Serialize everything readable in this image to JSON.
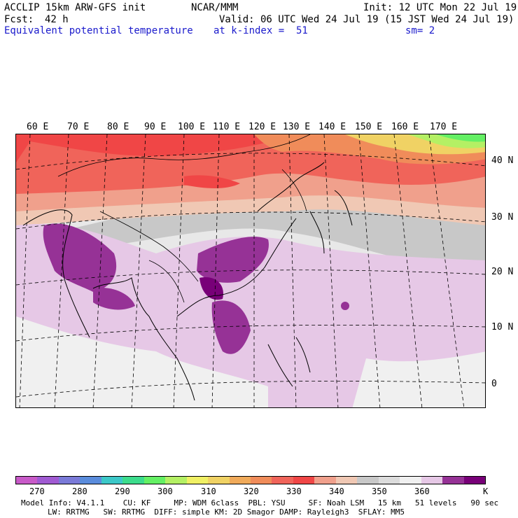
{
  "header": {
    "model": "ACCLIP 15km ARW-GFS init",
    "org": "NCAR/MMM",
    "init": "Init: 12 UTC Mon 22 Jul 19",
    "fcst_label": "Fcst:",
    "fcst_value": "42 h",
    "valid": "Valid: 06 UTC Wed 24 Jul 19 (15 JST Wed 24 Jul 19)",
    "field": "Equivalent potential temperature",
    "level": "at k-index =  51",
    "smooth": "sm= 2"
  },
  "map": {
    "lon_labels": [
      "60 E",
      "70 E",
      "80 E",
      "90 E",
      "100 E",
      "110 E",
      "120 E",
      "130 E",
      "140 E",
      "150 E",
      "160 E",
      "170 E"
    ],
    "lat_labels": [
      "40 N",
      "30 N",
      "20 N",
      "10 N",
      "0"
    ]
  },
  "colorbar": {
    "colors": [
      "#c85ac8",
      "#a05ad2",
      "#7a7ad8",
      "#5a8cdc",
      "#3cc8c8",
      "#3cdc8c",
      "#64f064",
      "#b4f064",
      "#f0f064",
      "#f0d264",
      "#f0aa5a",
      "#f08c5a",
      "#f0645a",
      "#f04646",
      "#f0a08c",
      "#f0c8b4",
      "#c8c8c8",
      "#dcdcdc",
      "#f0f0f0",
      "#e6c8e6",
      "#963296",
      "#780078"
    ],
    "labels": [
      "270",
      "280",
      "290",
      "300",
      "310",
      "320",
      "330",
      "340",
      "350",
      "360"
    ],
    "unit": "K"
  },
  "footer": {
    "line1": "Model Info: V4.1.1    CU: KF     MP: WDM 6class  PBL: YSU     SF: Noah LSM   15 km   51 levels   90 sec",
    "line2": "LW: RRTMG   SW: RRTMG  DIFF: simple KM: 2D Smagor DAMP: Rayleigh3  SFLAY: MM5"
  }
}
